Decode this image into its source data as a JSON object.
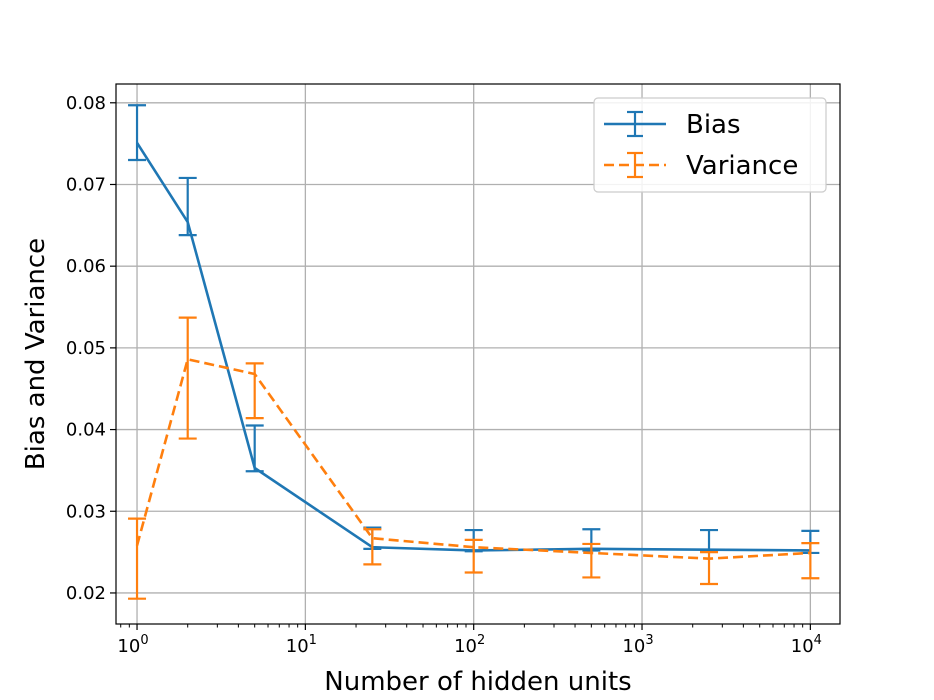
{
  "chart_data": {
    "type": "line",
    "title": "",
    "xlabel": "Number of hidden units",
    "ylabel": "Bias and Variance",
    "xscale": "log",
    "xlim": [
      0.75,
      15000
    ],
    "ylim": [
      0.0162,
      0.0823
    ],
    "xticks": [
      {
        "value": 1,
        "base": "10",
        "exp": "0"
      },
      {
        "value": 10,
        "base": "10",
        "exp": "1"
      },
      {
        "value": 100,
        "base": "10",
        "exp": "2"
      },
      {
        "value": 1000,
        "base": "10",
        "exp": "3"
      },
      {
        "value": 10000,
        "base": "10",
        "exp": "4"
      }
    ],
    "yticks": [
      {
        "value": 0.02,
        "label": "0.02"
      },
      {
        "value": 0.03,
        "label": "0.03"
      },
      {
        "value": 0.04,
        "label": "0.04"
      },
      {
        "value": 0.05,
        "label": "0.05"
      },
      {
        "value": 0.06,
        "label": "0.06"
      },
      {
        "value": 0.07,
        "label": "0.07"
      },
      {
        "value": 0.08,
        "label": "0.08"
      }
    ],
    "grid": true,
    "legend_position": "top-right",
    "series": [
      {
        "name": "Bias",
        "color": "#1f77b4",
        "linestyle": "solid",
        "x": [
          1,
          2,
          5,
          25,
          100,
          500,
          2500,
          10000
        ],
        "y": [
          0.0751,
          0.0654,
          0.0353,
          0.0256,
          0.0252,
          0.0254,
          0.0253,
          0.0252
        ],
        "err_low": [
          0.073,
          0.0638,
          0.0349,
          0.0254,
          0.0251,
          0.0252,
          0.0251,
          0.0249
        ],
        "err_high": [
          0.0797,
          0.0708,
          0.0405,
          0.028,
          0.0277,
          0.0278,
          0.0277,
          0.0276
        ]
      },
      {
        "name": "Variance",
        "color": "#ff7f0e",
        "linestyle": "dashed",
        "x": [
          1,
          2,
          5,
          25,
          100,
          500,
          2500,
          10000
        ],
        "y": [
          0.0258,
          0.0486,
          0.0468,
          0.0267,
          0.0256,
          0.0249,
          0.0242,
          0.0249
        ],
        "err_low": [
          0.0193,
          0.0389,
          0.0414,
          0.0235,
          0.0225,
          0.0219,
          0.0211,
          0.0218
        ],
        "err_high": [
          0.0291,
          0.0537,
          0.0481,
          0.0278,
          0.0265,
          0.026,
          0.025,
          0.0261
        ]
      }
    ]
  }
}
